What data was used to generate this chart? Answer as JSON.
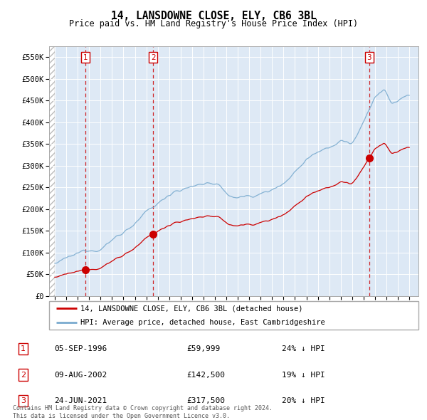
{
  "title": "14, LANSDOWNE CLOSE, ELY, CB6 3BL",
  "subtitle": "Price paid vs. HM Land Registry's House Price Index (HPI)",
  "legend_line1": "14, LANSDOWNE CLOSE, ELY, CB6 3BL (detached house)",
  "legend_line2": "HPI: Average price, detached house, East Cambridgeshire",
  "transactions": [
    {
      "num": 1,
      "date_str": "05-SEP-1996",
      "date_x": 1996.68,
      "price": 59999,
      "label": "24% ↓ HPI"
    },
    {
      "num": 2,
      "date_str": "09-AUG-2002",
      "date_x": 2002.6,
      "price": 142500,
      "label": "19% ↓ HPI"
    },
    {
      "num": 3,
      "date_str": "24-JUN-2021",
      "date_x": 2021.48,
      "price": 317500,
      "label": "20% ↓ HPI"
    }
  ],
  "hpi_color": "#7aabcf",
  "price_color": "#cc0000",
  "xlim": [
    1993.5,
    2025.8
  ],
  "ylim": [
    0,
    575000
  ],
  "yticks": [
    0,
    50000,
    100000,
    150000,
    200000,
    250000,
    300000,
    350000,
    400000,
    450000,
    500000,
    550000
  ],
  "ytick_labels": [
    "£0",
    "£50K",
    "£100K",
    "£150K",
    "£200K",
    "£250K",
    "£300K",
    "£350K",
    "£400K",
    "£450K",
    "£500K",
    "£550K"
  ],
  "footer": "Contains HM Land Registry data © Crown copyright and database right 2024.\nThis data is licensed under the Open Government Licence v3.0.",
  "chart_bg": "#dce8f5",
  "hatch_bg": "#ffffff"
}
